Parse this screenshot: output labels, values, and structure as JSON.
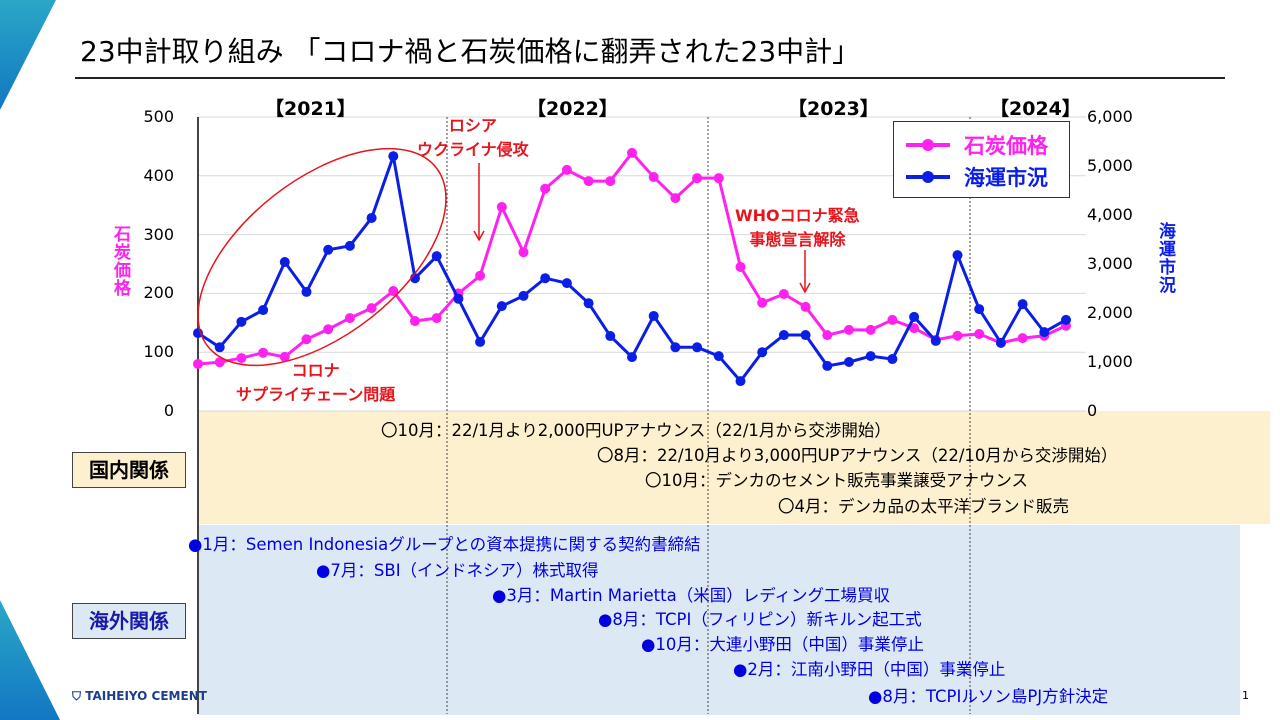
{
  "title": "23中計取り組み 「コロナ禍と石炭価格に翻弄された23中計」",
  "page_number": "1",
  "logo_text": "TAIHEIYO CEMENT",
  "colors": {
    "coal": "#ff22ee",
    "shipping": "#0a1ee6",
    "annotation": "#e8141c",
    "domestic_band": "#fdf0cf",
    "overseas_band": "#dde8f5"
  },
  "chart_data": {
    "type": "line",
    "years": [
      "【2021】",
      "【2022】",
      "【2023】",
      "【2024】"
    ],
    "left_axis": {
      "label": "石炭価格",
      "ylim": [
        0,
        500
      ],
      "ticks": [
        "0",
        "100",
        "200",
        "300",
        "400",
        "500"
      ]
    },
    "right_axis": {
      "label": "海運市況",
      "ylim": [
        0,
        6000
      ],
      "ticks": [
        "0",
        "1,000",
        "2,000",
        "3,000",
        "4,000",
        "5,000",
        "6,000"
      ]
    },
    "grid": true,
    "legend": "top-right",
    "series": [
      {
        "name": "石炭価格",
        "axis": "left",
        "color": "#ff22ee",
        "values": [
          80,
          83,
          90,
          99,
          92,
          122,
          139,
          158,
          175,
          204,
          153,
          158,
          200,
          230,
          347,
          270,
          378,
          410,
          391,
          391,
          439,
          398,
          362,
          396,
          396,
          245,
          184,
          199,
          177,
          129,
          138,
          138,
          155,
          141,
          121,
          128,
          131,
          116,
          124,
          128,
          145
        ]
      },
      {
        "name": "海運市況",
        "axis": "right",
        "color": "#0a1ee6",
        "values": [
          1590,
          1300,
          1820,
          2060,
          3040,
          2430,
          3290,
          3370,
          3940,
          5200,
          2710,
          3160,
          2290,
          1410,
          2140,
          2350,
          2710,
          2610,
          2200,
          1530,
          1100,
          1940,
          1300,
          1300,
          1120,
          610,
          1200,
          1550,
          1550,
          920,
          1000,
          1120,
          1060,
          1920,
          1430,
          3180,
          2080,
          1390,
          2180,
          1610,
          1860
        ]
      }
    ],
    "annotations": [
      {
        "text": "コロナ\nサプライチェーン問題"
      },
      {
        "text": "ロシア\nウクライナ侵攻"
      },
      {
        "text": "WHOコロナ緊急\n事態宣言解除"
      }
    ]
  },
  "domestic": {
    "label": "国内関係",
    "events": [
      "〇10月：22/1月より2,000円UPアナウンス（22/1月から交渉開始）",
      "〇8月：22/10月より3,000円UPアナウンス（22/10月から交渉開始）",
      "〇10月：デンカのセメント販売事業譲受アナウンス",
      "〇4月：デンカ品の太平洋ブランド販売"
    ]
  },
  "overseas": {
    "label": "海外関係",
    "events": [
      "●1月：Semen Indonesiaグループとの資本提携に関する契約書締結",
      "●7月：SBI（インドネシア）株式取得",
      "●3月：Martin Marietta（米国）レディング工場買収",
      "●8月：TCPI（フィリピン）新キルン起工式",
      "●10月：大連小野田（中国）事業停止",
      "●2月：江南小野田（中国）事業停止",
      "●8月：TCPIルソン島PJ方針決定"
    ]
  }
}
